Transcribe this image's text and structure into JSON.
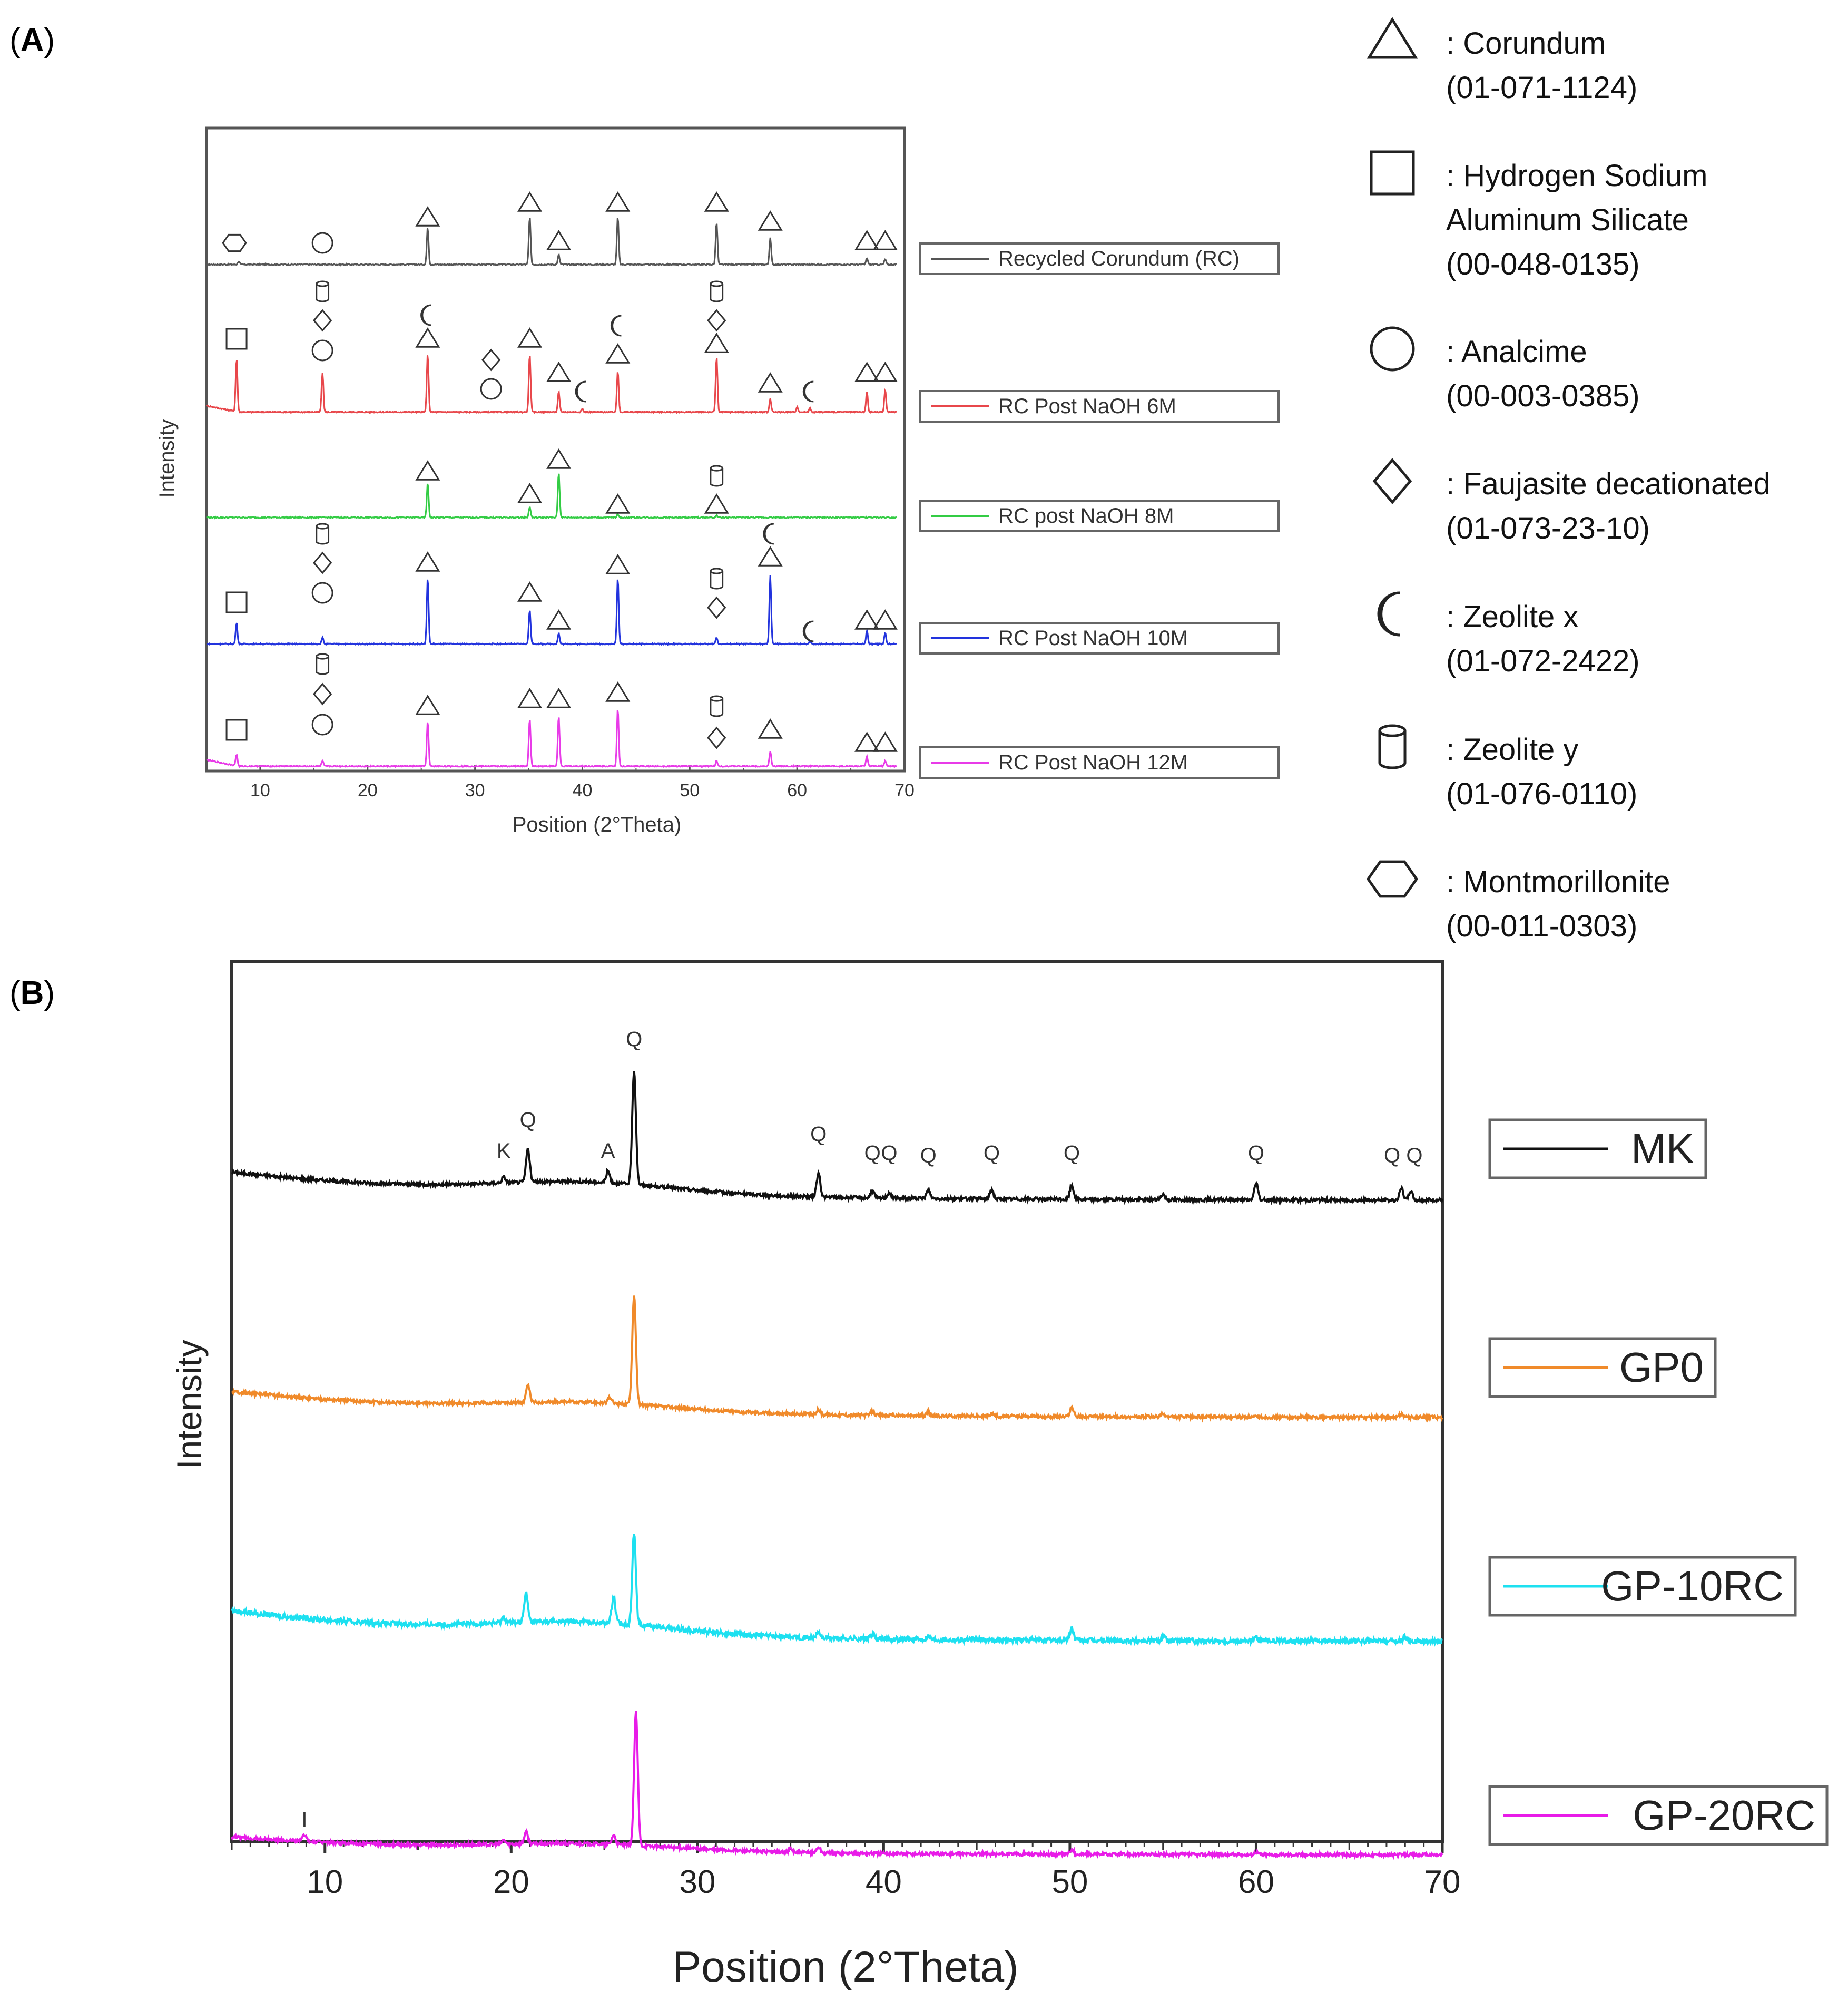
{
  "panels": {
    "a": {
      "label_open": "(",
      "label_letter": "A",
      "label_close": ")"
    },
    "b": {
      "label_open": "(",
      "label_letter": "B",
      "label_close": ")"
    }
  },
  "legend_a": {
    "entries": [
      {
        "symbol": "triangle",
        "lines": [
          ": Corundum",
          "(01-071-1124)"
        ]
      },
      {
        "symbol": "square",
        "lines": [
          ": Hydrogen Sodium",
          "Aluminum Silicate",
          "(00-048-0135)"
        ]
      },
      {
        "symbol": "circle",
        "lines": [
          ": Analcime",
          "(00-003-0385)"
        ]
      },
      {
        "symbol": "diamond",
        "lines": [
          ": Faujasite decationated",
          "(01-073-23-10)"
        ]
      },
      {
        "symbol": "crescent",
        "lines": [
          ": Zeolite x",
          "(01-072-2422)"
        ]
      },
      {
        "symbol": "cylinder",
        "lines": [
          ": Zeolite y",
          "(01-076-0110)"
        ]
      },
      {
        "symbol": "hexagon",
        "lines": [
          ": Montmorillonite",
          "(00-011-0303)"
        ]
      }
    ]
  },
  "chart_data": [
    {
      "type": "line",
      "panel": "A",
      "xlabel": "Position (2°Theta)",
      "ylabel": "Intensity",
      "xlim": [
        5,
        70
      ],
      "xticks": [
        10,
        20,
        30,
        40,
        50,
        60,
        70
      ],
      "series": [
        {
          "name": "Recycled Corundum (RC)",
          "color": "#555555",
          "peaks": [
            [
              8,
              6
            ],
            [
              25.6,
              70
            ],
            [
              35.1,
              90
            ],
            [
              37.8,
              18
            ],
            [
              43.3,
              90
            ],
            [
              52.5,
              80
            ],
            [
              57.5,
              50
            ],
            [
              66.5,
              12
            ],
            [
              68.2,
              10
            ]
          ],
          "markers": [
            {
              "sym": "hexagon",
              "x": 7.6,
              "t": 42
            },
            {
              "sym": "circle",
              "x": 15.8,
              "t": 42
            },
            {
              "sym": "triangle",
              "x": 25.6,
              "t": 90
            },
            {
              "sym": "triangle",
              "x": 35.1,
              "t": 118
            },
            {
              "sym": "triangle",
              "x": 37.8,
              "t": 45
            },
            {
              "sym": "triangle",
              "x": 43.3,
              "t": 118
            },
            {
              "sym": "triangle",
              "x": 52.5,
              "t": 118
            },
            {
              "sym": "triangle",
              "x": 57.5,
              "t": 82
            },
            {
              "sym": "triangle",
              "x": 66.5,
              "t": 45
            },
            {
              "sym": "triangle",
              "x": 68.2,
              "t": 45
            }
          ]
        },
        {
          "name": "RC Post NaOH 6M",
          "color": "#e8474b",
          "peaks": [
            [
              7.8,
              100
            ],
            [
              15.8,
              75
            ],
            [
              25.6,
              110
            ],
            [
              35.1,
              110
            ],
            [
              37.8,
              38
            ],
            [
              40,
              6
            ],
            [
              43.3,
              78
            ],
            [
              52.5,
              105
            ],
            [
              57.5,
              25
            ],
            [
              60,
              10
            ],
            [
              61.2,
              8
            ],
            [
              66.5,
              38
            ],
            [
              68.2,
              42
            ]
          ],
          "markers": [
            {
              "sym": "square",
              "x": 7.8,
              "t": 140
            },
            {
              "sym": "cylinder",
              "x": 15.8,
              "t": 230
            },
            {
              "sym": "diamond",
              "x": 15.8,
              "t": 175
            },
            {
              "sym": "circle",
              "x": 15.8,
              "t": 118
            },
            {
              "sym": "crescent",
              "x": 25.6,
              "t": 185
            },
            {
              "sym": "triangle",
              "x": 25.6,
              "t": 140
            },
            {
              "sym": "diamond",
              "x": 31.5,
              "t": 100
            },
            {
              "sym": "circle",
              "x": 31.5,
              "t": 45
            },
            {
              "sym": "triangle",
              "x": 35.1,
              "t": 140
            },
            {
              "sym": "triangle",
              "x": 37.8,
              "t": 75
            },
            {
              "sym": "crescent",
              "x": 40,
              "t": 40
            },
            {
              "sym": "crescent",
              "x": 43.3,
              "t": 165
            },
            {
              "sym": "triangle",
              "x": 43.3,
              "t": 110
            },
            {
              "sym": "cylinder",
              "x": 52.5,
              "t": 230
            },
            {
              "sym": "diamond",
              "x": 52.5,
              "t": 175
            },
            {
              "sym": "triangle",
              "x": 52.5,
              "t": 130
            },
            {
              "sym": "triangle",
              "x": 57.5,
              "t": 55
            },
            {
              "sym": "crescent",
              "x": 61.2,
              "t": 40
            },
            {
              "sym": "triangle",
              "x": 66.5,
              "t": 75
            },
            {
              "sym": "triangle",
              "x": 68.2,
              "t": 75
            }
          ]
        },
        {
          "name": "RC post NaOH 8M",
          "color": "#33cc44",
          "peaks": [
            [
              25.6,
              65
            ],
            [
              35.1,
              20
            ],
            [
              37.8,
              85
            ],
            [
              43.3,
              6
            ],
            [
              52.5,
              4
            ]
          ],
          "markers": [
            {
              "sym": "triangle",
              "x": 25.6,
              "t": 88
            },
            {
              "sym": "triangle",
              "x": 35.1,
              "t": 45
            },
            {
              "sym": "triangle",
              "x": 37.8,
              "t": 110
            },
            {
              "sym": "triangle",
              "x": 43.3,
              "t": 25
            },
            {
              "sym": "cylinder",
              "x": 52.5,
              "t": 80
            },
            {
              "sym": "triangle",
              "x": 52.5,
              "t": 25
            }
          ]
        },
        {
          "name": "RC Post NaOH 10M",
          "color": "#2233dd",
          "peaks": [
            [
              7.8,
              40
            ],
            [
              15.8,
              12
            ],
            [
              25.6,
              125
            ],
            [
              35.1,
              65
            ],
            [
              37.8,
              20
            ],
            [
              43.3,
              125
            ],
            [
              52.5,
              12
            ],
            [
              57.5,
              130
            ],
            [
              61.2,
              6
            ],
            [
              66.5,
              25
            ],
            [
              68.2,
              22
            ]
          ],
          "markers": [
            {
              "sym": "square",
              "x": 7.8,
              "t": 80
            },
            {
              "sym": "cylinder",
              "x": 15.8,
              "t": 210
            },
            {
              "sym": "diamond",
              "x": 15.8,
              "t": 155
            },
            {
              "sym": "circle",
              "x": 15.8,
              "t": 98
            },
            {
              "sym": "triangle",
              "x": 25.6,
              "t": 155
            },
            {
              "sym": "triangle",
              "x": 35.1,
              "t": 98
            },
            {
              "sym": "triangle",
              "x": 37.8,
              "t": 45
            },
            {
              "sym": "triangle",
              "x": 43.3,
              "t": 150
            },
            {
              "sym": "cylinder",
              "x": 52.5,
              "t": 125
            },
            {
              "sym": "diamond",
              "x": 52.5,
              "t": 70
            },
            {
              "sym": "crescent",
              "x": 57.5,
              "t": 210
            },
            {
              "sym": "triangle",
              "x": 57.5,
              "t": 165
            },
            {
              "sym": "crescent",
              "x": 61.2,
              "t": 25
            },
            {
              "sym": "triangle",
              "x": 66.5,
              "t": 45
            },
            {
              "sym": "triangle",
              "x": 68.2,
              "t": 45
            }
          ]
        },
        {
          "name": "RC Post NaOH 12M",
          "color": "#e83be8",
          "peaks": [
            [
              7.8,
              22
            ],
            [
              15.8,
              10
            ],
            [
              25.6,
              85
            ],
            [
              35.1,
              90
            ],
            [
              37.8,
              95
            ],
            [
              43.3,
              110
            ],
            [
              52.5,
              10
            ],
            [
              57.5,
              28
            ],
            [
              66.5,
              18
            ],
            [
              68.2,
              10
            ]
          ],
          "markers": [
            {
              "sym": "square",
              "x": 7.8,
              "t": 70
            },
            {
              "sym": "cylinder",
              "x": 15.8,
              "t": 195
            },
            {
              "sym": "diamond",
              "x": 15.8,
              "t": 138
            },
            {
              "sym": "circle",
              "x": 15.8,
              "t": 80
            },
            {
              "sym": "triangle",
              "x": 25.6,
              "t": 115
            },
            {
              "sym": "triangle",
              "x": 35.1,
              "t": 128
            },
            {
              "sym": "triangle",
              "x": 37.8,
              "t": 128
            },
            {
              "sym": "triangle",
              "x": 43.3,
              "t": 140
            },
            {
              "sym": "cylinder",
              "x": 52.5,
              "t": 115
            },
            {
              "sym": "diamond",
              "x": 52.5,
              "t": 55
            },
            {
              "sym": "triangle",
              "x": 57.5,
              "t": 70
            },
            {
              "sym": "triangle",
              "x": 66.5,
              "t": 45
            },
            {
              "sym": "triangle",
              "x": 68.2,
              "t": 45
            }
          ]
        }
      ]
    },
    {
      "type": "line",
      "panel": "B",
      "xlabel": "Position (2°Theta)",
      "ylabel": "Intensity",
      "xlim": [
        5,
        70
      ],
      "xticks": [
        10,
        20,
        30,
        40,
        50,
        60,
        70
      ],
      "series": [
        {
          "name": "MK",
          "color": "#111111",
          "hump": [
            0.06,
            0.024
          ],
          "peaks": [
            [
              19.6,
              0.012
            ],
            [
              20.9,
              0.07
            ],
            [
              25.2,
              0.025
            ],
            [
              26.6,
              0.24
            ],
            [
              36.5,
              0.05
            ],
            [
              39.4,
              0.015
            ],
            [
              40.3,
              0.012
            ],
            [
              42.4,
              0.018
            ],
            [
              45.8,
              0.02
            ],
            [
              50.1,
              0.03
            ],
            [
              55,
              0.012
            ],
            [
              60,
              0.035
            ],
            [
              67.8,
              0.025
            ],
            [
              68.3,
              0.02
            ]
          ],
          "labels": [
            {
              "text": "K",
              "x": 19.6,
              "v": 0.09
            },
            {
              "text": "Q",
              "x": 20.9,
              "v": 0.155
            },
            {
              "text": "A",
              "x": 25.2,
              "v": 0.09
            },
            {
              "text": "Q",
              "x": 26.6,
              "v": 0.325
            },
            {
              "text": "Q",
              "x": 36.5,
              "v": 0.125
            },
            {
              "text": "Q",
              "x": 39.4,
              "v": 0.085
            },
            {
              "text": "Q",
              "x": 40.3,
              "v": 0.085
            },
            {
              "text": "Q",
              "x": 42.4,
              "v": 0.08
            },
            {
              "text": "Q",
              "x": 45.8,
              "v": 0.085
            },
            {
              "text": "Q",
              "x": 50.1,
              "v": 0.085
            },
            {
              "text": "Q",
              "x": 60,
              "v": 0.085
            },
            {
              "text": "Q",
              "x": 67.3,
              "v": 0.08
            },
            {
              "text": "Q",
              "x": 68.5,
              "v": 0.08
            }
          ]
        },
        {
          "name": "GP0",
          "color": "#f08a2a",
          "hump": [
            0.055,
            0.018
          ],
          "peaks": [
            [
              20.9,
              0.035
            ],
            [
              25.3,
              0.012
            ],
            [
              26.6,
              0.23
            ],
            [
              36.5,
              0.01
            ],
            [
              39.4,
              0.008
            ],
            [
              42.4,
              0.008
            ],
            [
              45.8,
              0.006
            ],
            [
              50.1,
              0.02
            ],
            [
              55,
              0.006
            ],
            [
              67.8,
              0.008
            ]
          ],
          "labels": []
        },
        {
          "name": "GP-10RC",
          "color": "#1de0f0",
          "hump": [
            0.065,
            0.025
          ],
          "peaks": [
            [
              19.6,
              0.012
            ],
            [
              20.8,
              0.06
            ],
            [
              25.5,
              0.055
            ],
            [
              26.6,
              0.19
            ],
            [
              36.5,
              0.012
            ],
            [
              39.4,
              0.01
            ],
            [
              42.4,
              0.008
            ],
            [
              50.1,
              0.025
            ],
            [
              55,
              0.01
            ],
            [
              60,
              0.008
            ],
            [
              68,
              0.01
            ]
          ],
          "labels": []
        },
        {
          "name": "GP-20RC",
          "color": "#e81be8",
          "hump": [
            0.038,
            0.014
          ],
          "peaks": [
            [
              8.9,
              0.015
            ],
            [
              19.6,
              0.008
            ],
            [
              20.8,
              0.025
            ],
            [
              25.5,
              0.02
            ],
            [
              26.7,
              0.28
            ],
            [
              35,
              0.008
            ],
            [
              36.5,
              0.012
            ],
            [
              50.1,
              0.01
            ],
            [
              60,
              0.006
            ]
          ],
          "labels": [
            {
              "text": "I",
              "x": 8.9,
              "v": 0.06
            }
          ]
        }
      ]
    }
  ]
}
